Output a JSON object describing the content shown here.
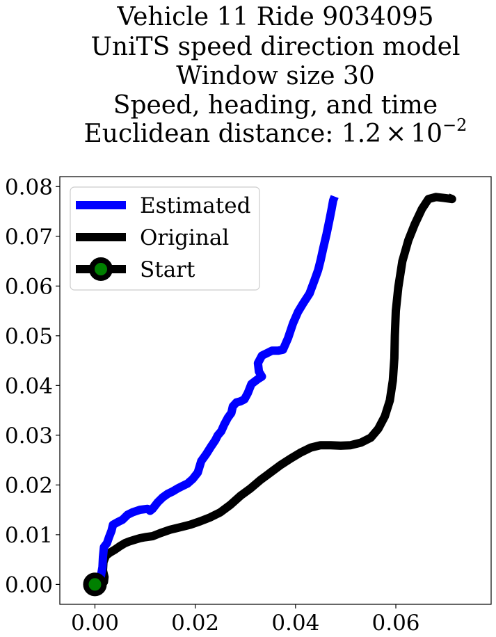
{
  "chart_data": {
    "type": "line",
    "title_lines": [
      "Vehicle 11 Ride 9034095",
      "UniTS speed direction model",
      "Window size 30",
      "Speed, heading, and time"
    ],
    "title_distance_prefix": "Euclidean distance: 1.2",
    "title_distance_times": "×",
    "title_distance_base": "10",
    "title_distance_exponent": "−2",
    "xlim": [
      -0.007,
      0.079
    ],
    "ylim": [
      -0.004,
      0.082
    ],
    "xticks": [
      0.0,
      0.02,
      0.04,
      0.06
    ],
    "xtick_labels": [
      "0.00",
      "0.02",
      "0.04",
      "0.06"
    ],
    "yticks": [
      0.0,
      0.01,
      0.02,
      0.03,
      0.04,
      0.05,
      0.06,
      0.07,
      0.08
    ],
    "ytick_labels": [
      "0.00",
      "0.01",
      "0.02",
      "0.03",
      "0.04",
      "0.05",
      "0.06",
      "0.07",
      "0.08"
    ],
    "grid": false,
    "legend_position": "upper left",
    "series": [
      {
        "name": "Estimated",
        "color": "#0000ff",
        "points": [
          [
            0.0,
            0.0
          ],
          [
            0.0005,
            0.0012
          ],
          [
            0.0012,
            0.0017
          ],
          [
            0.0015,
            0.0035
          ],
          [
            0.0016,
            0.0055
          ],
          [
            0.0018,
            0.0075
          ],
          [
            0.0024,
            0.0083
          ],
          [
            0.0028,
            0.0095
          ],
          [
            0.0033,
            0.0108
          ],
          [
            0.0036,
            0.012
          ],
          [
            0.0045,
            0.0125
          ],
          [
            0.0055,
            0.013
          ],
          [
            0.0065,
            0.014
          ],
          [
            0.0075,
            0.0145
          ],
          [
            0.009,
            0.015
          ],
          [
            0.0105,
            0.0152
          ],
          [
            0.011,
            0.0148
          ],
          [
            0.0115,
            0.0152
          ],
          [
            0.0125,
            0.0165
          ],
          [
            0.0135,
            0.0175
          ],
          [
            0.0145,
            0.0182
          ],
          [
            0.0155,
            0.0187
          ],
          [
            0.0165,
            0.0193
          ],
          [
            0.0175,
            0.0198
          ],
          [
            0.0185,
            0.0203
          ],
          [
            0.0195,
            0.0212
          ],
          [
            0.0205,
            0.0225
          ],
          [
            0.0212,
            0.0248
          ],
          [
            0.0222,
            0.0262
          ],
          [
            0.0232,
            0.0278
          ],
          [
            0.024,
            0.029
          ],
          [
            0.0245,
            0.03
          ],
          [
            0.0252,
            0.0308
          ],
          [
            0.0258,
            0.0322
          ],
          [
            0.0265,
            0.0335
          ],
          [
            0.0272,
            0.0345
          ],
          [
            0.0275,
            0.0358
          ],
          [
            0.0282,
            0.0366
          ],
          [
            0.029,
            0.0368
          ],
          [
            0.0298,
            0.0372
          ],
          [
            0.0305,
            0.0385
          ],
          [
            0.0312,
            0.0403
          ],
          [
            0.0325,
            0.0413
          ],
          [
            0.0333,
            0.0418
          ],
          [
            0.0327,
            0.0428
          ],
          [
            0.0325,
            0.0445
          ],
          [
            0.0333,
            0.046
          ],
          [
            0.0343,
            0.0465
          ],
          [
            0.0353,
            0.047
          ],
          [
            0.0365,
            0.047
          ],
          [
            0.0375,
            0.0472
          ],
          [
            0.0385,
            0.0495
          ],
          [
            0.0395,
            0.0525
          ],
          [
            0.0405,
            0.0548
          ],
          [
            0.0415,
            0.0565
          ],
          [
            0.0428,
            0.0585
          ],
          [
            0.0438,
            0.0612
          ],
          [
            0.0445,
            0.0632
          ],
          [
            0.045,
            0.0652
          ],
          [
            0.0455,
            0.0675
          ],
          [
            0.0462,
            0.0705
          ],
          [
            0.0468,
            0.0735
          ],
          [
            0.0472,
            0.0755
          ],
          [
            0.0475,
            0.0772
          ],
          [
            0.0478,
            0.078
          ]
        ]
      },
      {
        "name": "Original",
        "color": "#000000",
        "points": [
          [
            0.0,
            0.0
          ],
          [
            0.001,
            -0.0003
          ],
          [
            0.0018,
            0.0005
          ],
          [
            0.0019,
            0.0015
          ],
          [
            0.0016,
            0.0028
          ],
          [
            0.0017,
            0.0045
          ],
          [
            0.0022,
            0.0058
          ],
          [
            0.003,
            0.0064
          ],
          [
            0.004,
            0.007
          ],
          [
            0.005,
            0.0077
          ],
          [
            0.006,
            0.0083
          ],
          [
            0.007,
            0.0087
          ],
          [
            0.008,
            0.009
          ],
          [
            0.009,
            0.0093
          ],
          [
            0.01,
            0.0095
          ],
          [
            0.0115,
            0.0097
          ],
          [
            0.013,
            0.0103
          ],
          [
            0.015,
            0.011
          ],
          [
            0.017,
            0.0115
          ],
          [
            0.019,
            0.012
          ],
          [
            0.021,
            0.0127
          ],
          [
            0.023,
            0.0135
          ],
          [
            0.025,
            0.0145
          ],
          [
            0.027,
            0.016
          ],
          [
            0.029,
            0.0178
          ],
          [
            0.031,
            0.0193
          ],
          [
            0.033,
            0.021
          ],
          [
            0.035,
            0.0225
          ],
          [
            0.037,
            0.024
          ],
          [
            0.039,
            0.0253
          ],
          [
            0.041,
            0.0265
          ],
          [
            0.043,
            0.0275
          ],
          [
            0.045,
            0.028
          ],
          [
            0.047,
            0.028
          ],
          [
            0.049,
            0.0279
          ],
          [
            0.051,
            0.028
          ],
          [
            0.053,
            0.0285
          ],
          [
            0.055,
            0.0295
          ],
          [
            0.0565,
            0.0313
          ],
          [
            0.0578,
            0.0338
          ],
          [
            0.0588,
            0.037
          ],
          [
            0.0594,
            0.041
          ],
          [
            0.0597,
            0.0455
          ],
          [
            0.0598,
            0.05
          ],
          [
            0.06,
            0.055
          ],
          [
            0.0605,
            0.0598
          ],
          [
            0.0613,
            0.065
          ],
          [
            0.0625,
            0.0692
          ],
          [
            0.0638,
            0.0725
          ],
          [
            0.0652,
            0.0755
          ],
          [
            0.0665,
            0.0775
          ],
          [
            0.068,
            0.0779
          ],
          [
            0.0698,
            0.0777
          ],
          [
            0.0712,
            0.0775
          ],
          [
            0.0704,
            0.0778
          ]
        ]
      }
    ],
    "start_marker": {
      "name": "Start",
      "x": 0.0,
      "y": 0.0,
      "edge_color": "#000000",
      "face_color": "#008000"
    }
  }
}
